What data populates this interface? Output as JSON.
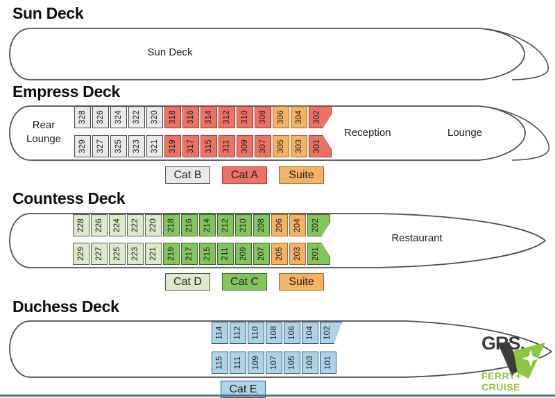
{
  "colors": {
    "cat_b": "#e9e9e9",
    "cat_a": "#ec7266",
    "cat_c": "#84c45f",
    "cat_d": "#dde8cc",
    "cat_e": "#aed3e6",
    "suite": "#f4b266",
    "hull_stroke": "#4d4d4d",
    "bottom_bar": "#4e7187",
    "logo_green": "#8dc63f",
    "logo_dark": "#3b3b3b"
  },
  "decks": [
    {
      "id": "sun",
      "title": "Sun Deck",
      "areas": {
        "center": "Sun Deck"
      },
      "rows": [],
      "legend": []
    },
    {
      "id": "empress",
      "title": "Empress Deck",
      "areas": {
        "rear": "Rear Lounge",
        "reception": "Reception",
        "lounge": "Lounge"
      },
      "rows": [
        {
          "cabins": [
            {
              "n": "328",
              "cat": "b"
            },
            {
              "n": "326",
              "cat": "b"
            },
            {
              "n": "324",
              "cat": "b"
            },
            {
              "n": "322",
              "cat": "b"
            },
            {
              "n": "320",
              "cat": "b"
            },
            {
              "n": "318",
              "cat": "a"
            },
            {
              "n": "316",
              "cat": "a"
            },
            {
              "n": "314",
              "cat": "a"
            },
            {
              "n": "312",
              "cat": "a"
            },
            {
              "n": "310",
              "cat": "a"
            },
            {
              "n": "308",
              "cat": "a"
            },
            {
              "n": "306",
              "cat": "suite"
            },
            {
              "n": "304",
              "cat": "suite"
            },
            {
              "n": "302",
              "cat": "a",
              "shape": "shape-end-top"
            }
          ]
        },
        {
          "cabins": [
            {
              "n": "329",
              "cat": "b"
            },
            {
              "n": "327",
              "cat": "b"
            },
            {
              "n": "325",
              "cat": "b"
            },
            {
              "n": "323",
              "cat": "b"
            },
            {
              "n": "321",
              "cat": "b"
            },
            {
              "n": "319",
              "cat": "a"
            },
            {
              "n": "317",
              "cat": "a"
            },
            {
              "n": "315",
              "cat": "a"
            },
            {
              "n": "311",
              "cat": "a"
            },
            {
              "n": "309",
              "cat": "a"
            },
            {
              "n": "307",
              "cat": "a"
            },
            {
              "n": "305",
              "cat": "suite"
            },
            {
              "n": "303",
              "cat": "suite"
            },
            {
              "n": "301",
              "cat": "a",
              "shape": "shape-end-bottom"
            }
          ]
        }
      ],
      "legend": [
        {
          "label": "Cat B",
          "cat": "b"
        },
        {
          "label": "Cat A",
          "cat": "a"
        },
        {
          "label": "Suite",
          "cat": "suite"
        }
      ]
    },
    {
      "id": "countess",
      "title": "Countess Deck",
      "areas": {
        "restaurant": "Restaurant"
      },
      "rows": [
        {
          "cabins": [
            {
              "n": "228",
              "cat": "d"
            },
            {
              "n": "226",
              "cat": "d"
            },
            {
              "n": "224",
              "cat": "d"
            },
            {
              "n": "222",
              "cat": "d"
            },
            {
              "n": "220",
              "cat": "d"
            },
            {
              "n": "218",
              "cat": "c"
            },
            {
              "n": "216",
              "cat": "c"
            },
            {
              "n": "214",
              "cat": "c"
            },
            {
              "n": "212",
              "cat": "c"
            },
            {
              "n": "210",
              "cat": "c"
            },
            {
              "n": "208",
              "cat": "c"
            },
            {
              "n": "206",
              "cat": "suite"
            },
            {
              "n": "204",
              "cat": "suite"
            },
            {
              "n": "202",
              "cat": "c",
              "shape": "shape-end-top"
            }
          ]
        },
        {
          "cabins": [
            {
              "n": "229",
              "cat": "d"
            },
            {
              "n": "227",
              "cat": "d"
            },
            {
              "n": "225",
              "cat": "d"
            },
            {
              "n": "223",
              "cat": "d"
            },
            {
              "n": "221",
              "cat": "d"
            },
            {
              "n": "219",
              "cat": "c"
            },
            {
              "n": "217",
              "cat": "c"
            },
            {
              "n": "215",
              "cat": "c"
            },
            {
              "n": "211",
              "cat": "c"
            },
            {
              "n": "209",
              "cat": "c"
            },
            {
              "n": "207",
              "cat": "c"
            },
            {
              "n": "205",
              "cat": "suite"
            },
            {
              "n": "203",
              "cat": "suite"
            },
            {
              "n": "201",
              "cat": "c",
              "shape": "shape-end-bottom"
            }
          ]
        }
      ],
      "legend": [
        {
          "label": "Cat D",
          "cat": "d"
        },
        {
          "label": "Cat C",
          "cat": "c"
        },
        {
          "label": "Suite",
          "cat": "suite"
        }
      ]
    },
    {
      "id": "duchess",
      "title": "Duchess Deck",
      "areas": {},
      "rows": [
        {
          "cabins": [
            {
              "n": "114",
              "cat": "e"
            },
            {
              "n": "112",
              "cat": "e"
            },
            {
              "n": "110",
              "cat": "e"
            },
            {
              "n": "108",
              "cat": "e"
            },
            {
              "n": "106",
              "cat": "e"
            },
            {
              "n": "104",
              "cat": "e"
            },
            {
              "n": "102",
              "cat": "e",
              "shape": "shape-slant-top"
            }
          ]
        },
        {
          "cabins": [
            {
              "n": "115",
              "cat": "e"
            },
            {
              "n": "111",
              "cat": "e"
            },
            {
              "n": "109",
              "cat": "e"
            },
            {
              "n": "107",
              "cat": "e"
            },
            {
              "n": "105",
              "cat": "e"
            },
            {
              "n": "103",
              "cat": "e"
            },
            {
              "n": "101",
              "cat": "e"
            }
          ]
        }
      ],
      "legend": [
        {
          "label": "Cat E",
          "cat": "e"
        }
      ]
    }
  ],
  "logo": {
    "brand": "GRS.",
    "tagline_line1": "FERRY+",
    "tagline_line2": "CRUISE"
  }
}
